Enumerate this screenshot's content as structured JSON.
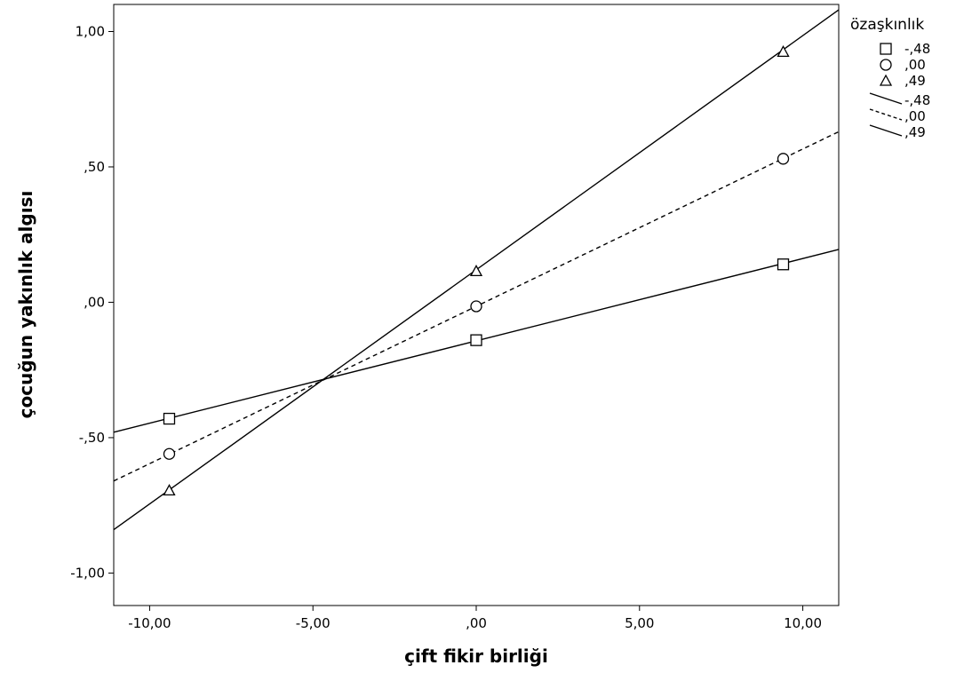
{
  "chart_data": {
    "type": "line",
    "title": "",
    "xlabel": "çift fikir birliği",
    "ylabel": "çocuğun yakınlık algısı",
    "xlim": [
      -11.1,
      11.1
    ],
    "ylim": [
      -1.12,
      1.1
    ],
    "x_ticks": [
      -10,
      -5,
      0,
      5,
      10
    ],
    "x_tick_labels": [
      "-10,00",
      "-5,00",
      ",00",
      "5,00",
      "10,00"
    ],
    "y_ticks": [
      1,
      0.5,
      0,
      -0.5,
      -1
    ],
    "y_tick_labels": [
      "1,00",
      ",50",
      ",00",
      "-,50",
      "-1,00"
    ],
    "grid": false,
    "legend_title": "özaşkınlık",
    "legend_position": "right",
    "series": [
      {
        "name": "-,48",
        "marker": "square",
        "line_style": "solid",
        "points": [
          {
            "x": -9.4,
            "y": -0.43
          },
          {
            "x": 0,
            "y": -0.14
          },
          {
            "x": 9.4,
            "y": 0.14
          }
        ],
        "fit": {
          "x": [
            -11.1,
            11.1
          ],
          "y": [
            -0.48,
            0.195
          ]
        }
      },
      {
        "name": ",00",
        "marker": "circle",
        "line_style": "dashed",
        "points": [
          {
            "x": -9.4,
            "y": -0.56
          },
          {
            "x": 0,
            "y": -0.015
          },
          {
            "x": 9.4,
            "y": 0.53
          }
        ],
        "fit": {
          "x": [
            -11.1,
            11.1
          ],
          "y": [
            -0.66,
            0.63
          ]
        }
      },
      {
        "name": ",49",
        "marker": "triangle",
        "line_style": "solid",
        "points": [
          {
            "x": -9.4,
            "y": -0.695
          },
          {
            "x": 0,
            "y": 0.115
          },
          {
            "x": 9.4,
            "y": 0.925
          }
        ],
        "fit": {
          "x": [
            -11.1,
            11.1
          ],
          "y": [
            -0.84,
            1.08
          ]
        }
      }
    ]
  }
}
